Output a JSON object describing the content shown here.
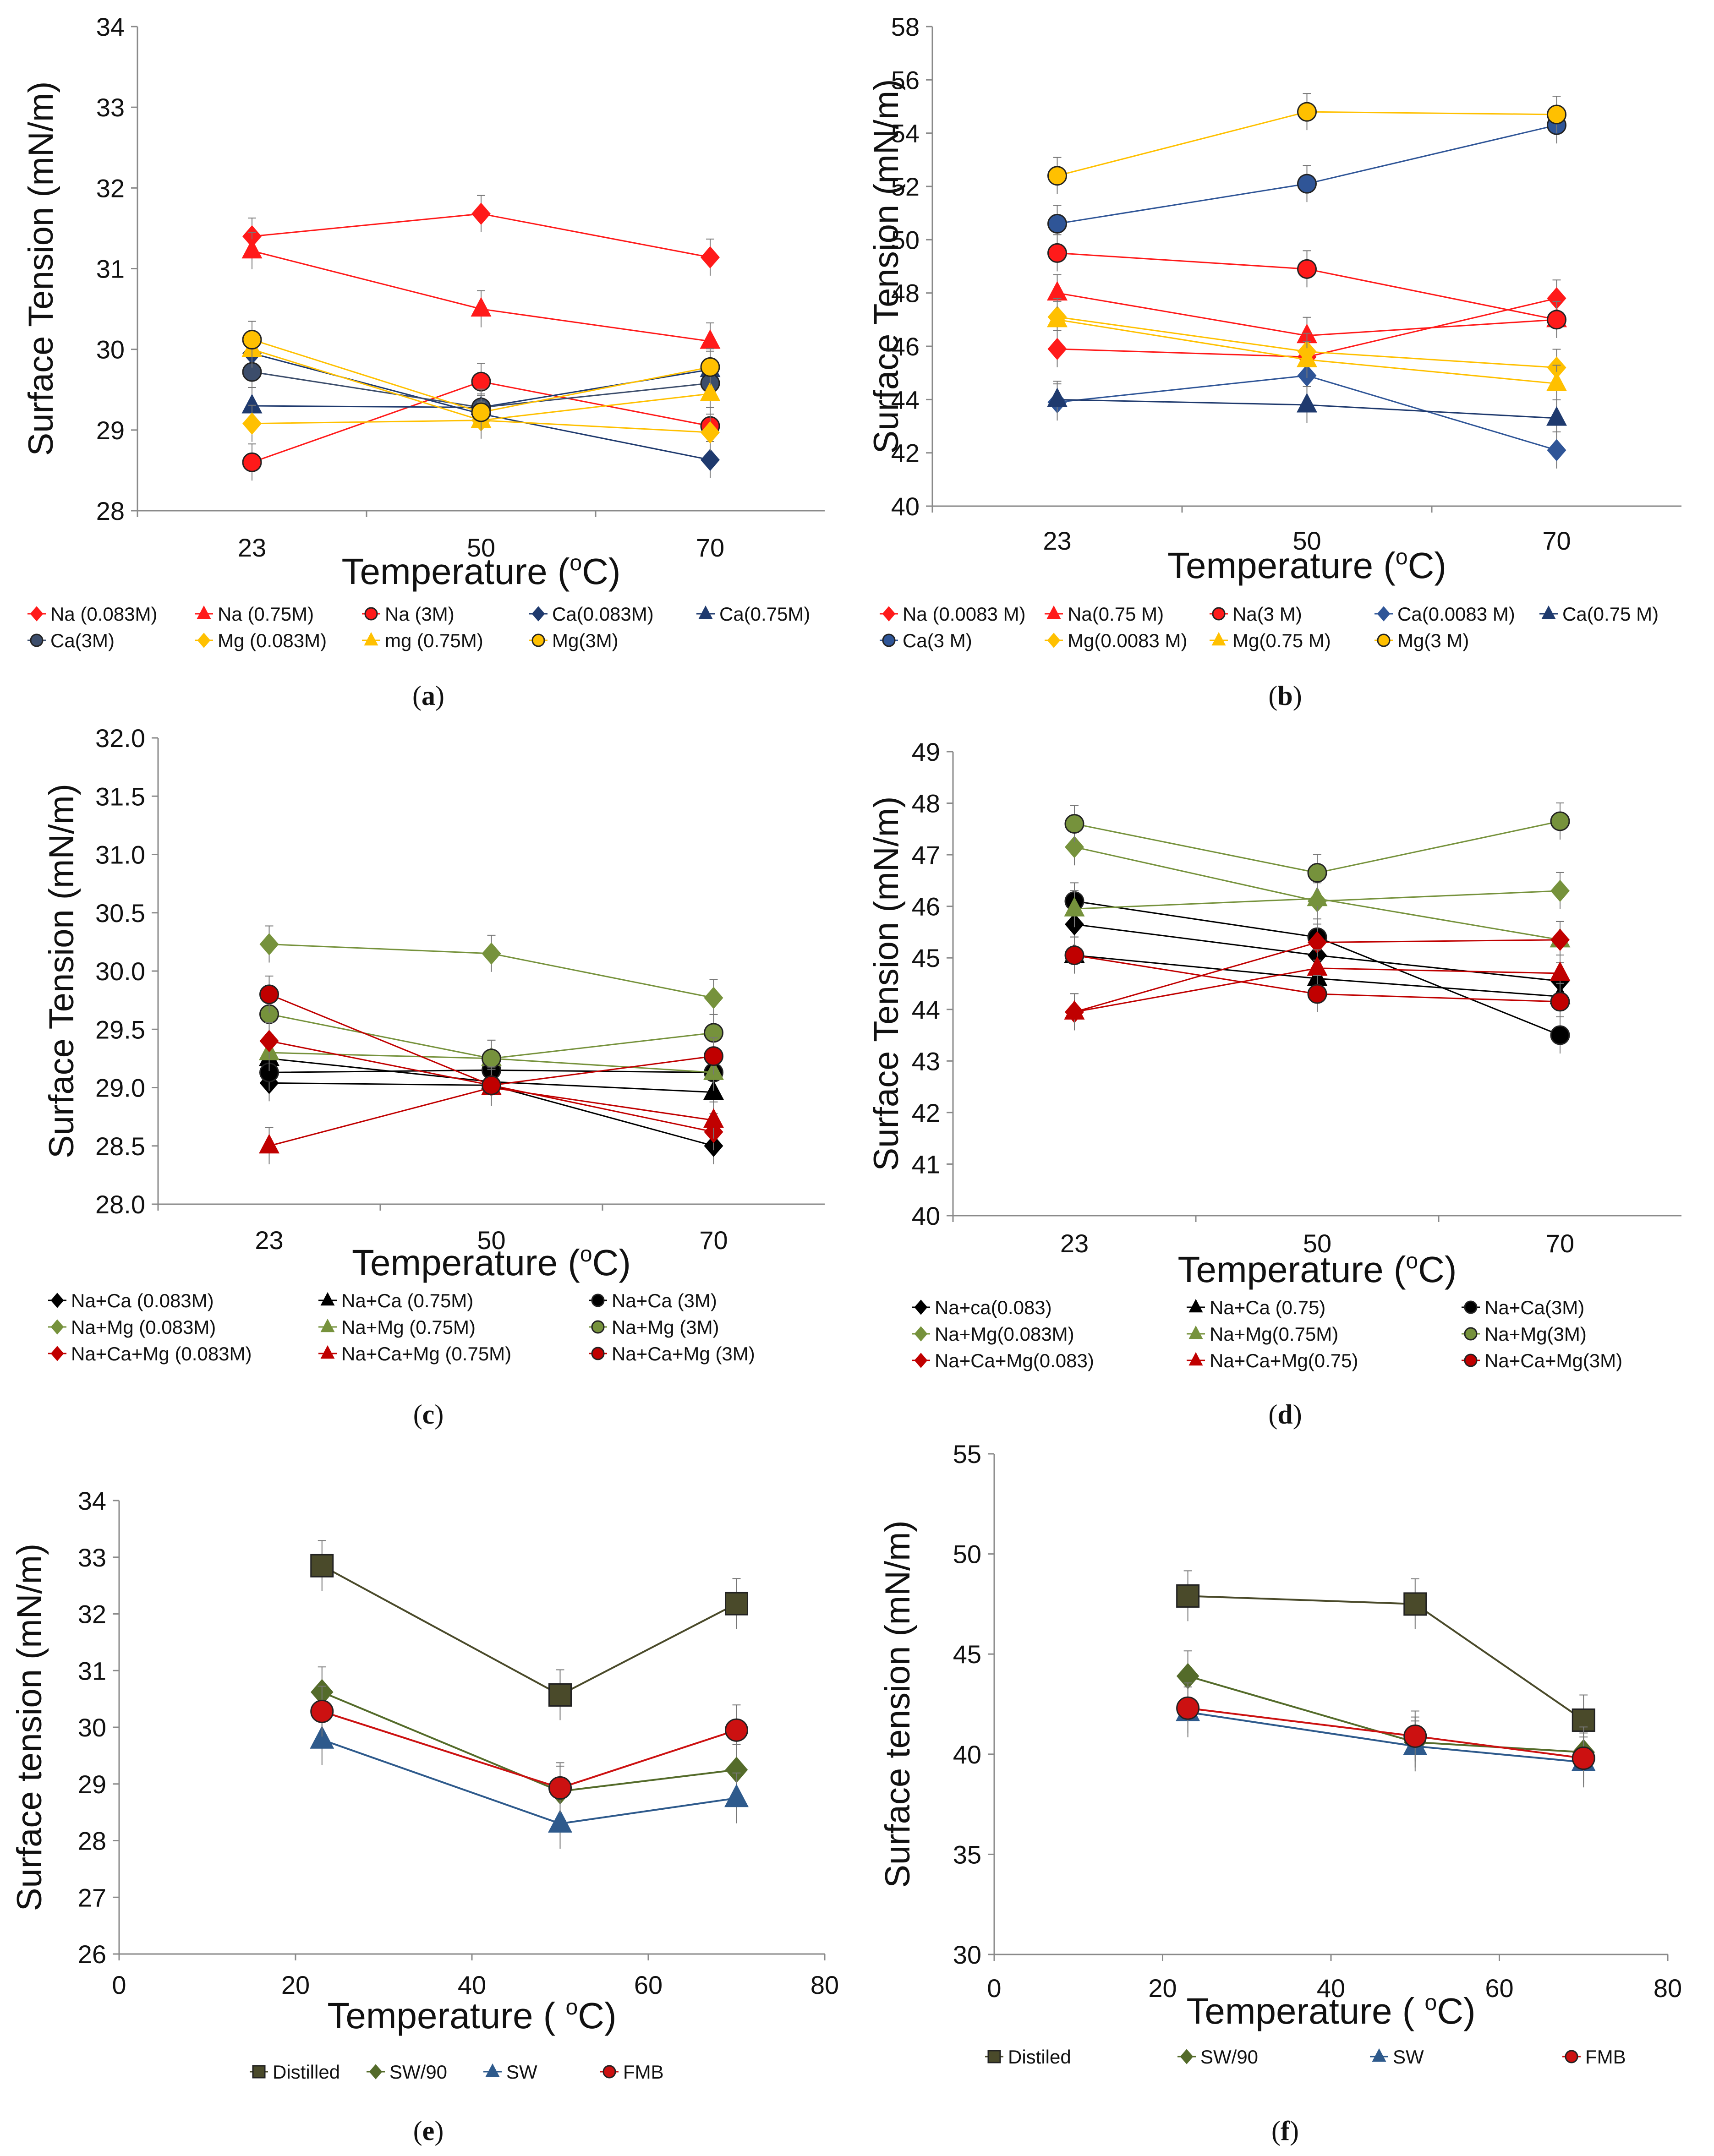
{
  "figure": {
    "panels": [
      {
        "id": "a",
        "caption": "a",
        "chart_data": {
          "type": "line",
          "ylabel": "Surface Tension (mN/m)",
          "xlabel": "Temperature (oC)",
          "xlabel_parts": [
            "Temperature (",
            "o",
            "C)"
          ],
          "x_mode": "category",
          "categories": [
            "23",
            "50",
            "70"
          ],
          "ylim": [
            28,
            34
          ],
          "yticks": [
            28,
            29,
            30,
            31,
            32,
            33,
            34
          ],
          "ytick_labels": [
            "28",
            "29",
            "30",
            "31",
            "32",
            "33",
            "34"
          ],
          "legend_position": "bottom",
          "legend_columns": 5,
          "series": [
            {
              "name": "Na (0.083M)",
              "values": [
                31.4,
                31.68,
                31.14
              ],
              "color": "#ff1a1a",
              "marker": "diamond",
              "size": "small"
            },
            {
              "name": "Na (0.75M)",
              "values": [
                31.22,
                30.5,
                30.1
              ],
              "color": "#ff1a1a",
              "marker": "triangle",
              "size": "small"
            },
            {
              "name": "Na (3M)",
              "values": [
                28.6,
                29.6,
                29.05
              ],
              "color": "#ff1a1a",
              "marker": "circle",
              "size": "small"
            },
            {
              "name": "Ca(0.083M)",
              "values": [
                29.95,
                29.2,
                28.63
              ],
              "color": "#1f3a6e",
              "marker": "diamond",
              "size": "small"
            },
            {
              "name": "Ca(0.75M)",
              "values": [
                29.3,
                29.28,
                29.75
              ],
              "color": "#1f3a6e",
              "marker": "triangle",
              "size": "small"
            },
            {
              "name": "Ca(3M)",
              "values": [
                29.72,
                29.28,
                29.58
              ],
              "color": "#3c4d6b",
              "marker": "circle",
              "size": "small"
            },
            {
              "name": "Mg (0.083M)",
              "values": [
                29.08,
                29.12,
                28.97
              ],
              "color": "#ffc000",
              "marker": "diamond",
              "size": "small"
            },
            {
              "name": "mg (0.75M)",
              "values": [
                30.0,
                29.12,
                29.45
              ],
              "color": "#ffc000",
              "marker": "triangle",
              "size": "small"
            },
            {
              "name": "Mg(3M)",
              "values": [
                30.12,
                29.22,
                29.78
              ],
              "color": "#ffc000",
              "marker": "circle",
              "size": "small"
            }
          ]
        }
      },
      {
        "id": "b",
        "caption": "b",
        "chart_data": {
          "type": "line",
          "ylabel": "Surface Tension (mN/m)",
          "xlabel": "Temperature (oC)",
          "xlabel_parts": [
            "Temperature (",
            "o",
            "C)"
          ],
          "x_mode": "category",
          "categories": [
            "23",
            "50",
            "70"
          ],
          "ylim": [
            40,
            58
          ],
          "yticks": [
            40,
            42,
            44,
            46,
            48,
            50,
            52,
            54,
            56,
            58
          ],
          "ytick_labels": [
            "40",
            "42",
            "44",
            "46",
            "48",
            "50",
            "52",
            "54",
            "56",
            "58"
          ],
          "legend_position": "bottom",
          "legend_columns": 5,
          "series": [
            {
              "name": "Na (0.0083 M)",
              "values": [
                45.9,
                45.6,
                47.8
              ],
              "color": "#ff1a1a",
              "marker": "diamond",
              "size": "small"
            },
            {
              "name": "Na(0.75 M)",
              "values": [
                48.0,
                46.4,
                47.0
              ],
              "color": "#ff1a1a",
              "marker": "triangle",
              "size": "small"
            },
            {
              "name": "Na(3 M)",
              "values": [
                49.5,
                48.9,
                47.0
              ],
              "color": "#ff1a1a",
              "marker": "circle",
              "size": "small"
            },
            {
              "name": "Ca(0.0083 M)",
              "values": [
                43.9,
                44.9,
                42.1
              ],
              "color": "#2f5597",
              "marker": "diamond",
              "size": "small"
            },
            {
              "name": "Ca(0.75 M)",
              "values": [
                44.0,
                43.8,
                43.3
              ],
              "color": "#1f3a6e",
              "marker": "triangle",
              "size": "small"
            },
            {
              "name": "Ca(3 M)",
              "values": [
                50.6,
                52.1,
                54.3
              ],
              "color": "#2f5597",
              "marker": "circle",
              "size": "small"
            },
            {
              "name": "Mg(0.0083 M)",
              "values": [
                47.1,
                45.8,
                45.2
              ],
              "color": "#ffc000",
              "marker": "diamond",
              "size": "small"
            },
            {
              "name": "Mg(0.75 M)",
              "values": [
                47.0,
                45.5,
                44.6
              ],
              "color": "#ffc000",
              "marker": "triangle",
              "size": "small"
            },
            {
              "name": "Mg(3 M)",
              "values": [
                52.4,
                54.8,
                54.7
              ],
              "color": "#ffc000",
              "marker": "circle",
              "size": "small"
            }
          ]
        }
      },
      {
        "id": "c",
        "caption": "c",
        "chart_data": {
          "type": "line",
          "ylabel": "Surface Tension (mN/m)",
          "xlabel": "Temperature (oC)",
          "xlabel_parts": [
            "Temperature (",
            "o",
            "C)"
          ],
          "x_mode": "category",
          "categories": [
            "23",
            "50",
            "70"
          ],
          "ylim": [
            28.0,
            32.0
          ],
          "yticks": [
            28.0,
            28.5,
            29.0,
            29.5,
            30.0,
            30.5,
            31.0,
            31.5,
            32.0
          ],
          "ytick_labels": [
            "28.0",
            "28.5",
            "29.0",
            "29.5",
            "30.0",
            "30.5",
            "31.0",
            "31.5",
            "32.0"
          ],
          "legend_position": "bottom",
          "legend_columns": 3,
          "series": [
            {
              "name": "Na+Ca (0.083M)",
              "values": [
                29.04,
                29.02,
                28.5
              ],
              "color": "#000000",
              "marker": "diamond",
              "size": "small"
            },
            {
              "name": "Na+Ca (0.75M)",
              "values": [
                29.25,
                29.05,
                28.96
              ],
              "color": "#000000",
              "marker": "triangle",
              "size": "small"
            },
            {
              "name": "Na+Ca (3M)",
              "values": [
                29.13,
                29.15,
                29.13
              ],
              "color": "#000000",
              "marker": "circle",
              "size": "small"
            },
            {
              "name": "Na+Mg (0.083M)",
              "values": [
                30.23,
                30.15,
                29.77
              ],
              "color": "#76923c",
              "marker": "diamond",
              "size": "small"
            },
            {
              "name": "Na+Mg (0.75M)",
              "values": [
                29.3,
                29.25,
                29.13
              ],
              "color": "#76923c",
              "marker": "triangle",
              "size": "small"
            },
            {
              "name": "Na+Mg (3M)",
              "values": [
                29.63,
                29.25,
                29.47
              ],
              "color": "#76923c",
              "marker": "circle",
              "size": "small"
            },
            {
              "name": "Na+Ca+Mg (0.083M)",
              "values": [
                29.4,
                29.02,
                28.62
              ],
              "color": "#c00000",
              "marker": "diamond",
              "size": "small"
            },
            {
              "name": "Na+Ca+Mg (0.75M)",
              "values": [
                28.5,
                29.0,
                28.72
              ],
              "color": "#c00000",
              "marker": "triangle",
              "size": "small"
            },
            {
              "name": "Na+Ca+Mg (3M)",
              "values": [
                29.8,
                29.02,
                29.27
              ],
              "color": "#c00000",
              "marker": "circle",
              "size": "small"
            }
          ]
        }
      },
      {
        "id": "d",
        "caption": "d",
        "chart_data": {
          "type": "line",
          "ylabel": "Surface Tension (mN/m)",
          "xlabel": "Temperature (oC)",
          "xlabel_parts": [
            "Temperature (",
            "o",
            "C)"
          ],
          "x_mode": "category",
          "categories": [
            "23",
            "50",
            "70"
          ],
          "ylim": [
            40,
            49
          ],
          "yticks": [
            40,
            41,
            42,
            43,
            44,
            45,
            46,
            47,
            48,
            49
          ],
          "ytick_labels": [
            "40",
            "41",
            "42",
            "43",
            "44",
            "45",
            "46",
            "47",
            "48",
            "49"
          ],
          "legend_position": "bottom",
          "legend_columns": 3,
          "series": [
            {
              "name": "Na+ca(0.083)",
              "values": [
                45.65,
                45.05,
                44.55
              ],
              "color": "#000000",
              "marker": "diamond",
              "size": "small"
            },
            {
              "name": "Na+Ca (0.75)",
              "values": [
                45.05,
                44.6,
                44.25
              ],
              "color": "#000000",
              "marker": "triangle",
              "size": "small"
            },
            {
              "name": "Na+Ca(3M)",
              "values": [
                46.1,
                45.4,
                43.5
              ],
              "color": "#000000",
              "marker": "circle",
              "size": "small"
            },
            {
              "name": "Na+Mg(0.083M)",
              "values": [
                47.15,
                46.1,
                46.3
              ],
              "color": "#76923c",
              "marker": "diamond",
              "size": "small"
            },
            {
              "name": "Na+Mg(0.75M)",
              "values": [
                45.95,
                46.15,
                45.35
              ],
              "color": "#76923c",
              "marker": "triangle",
              "size": "small"
            },
            {
              "name": "Na+Mg(3M)",
              "values": [
                47.6,
                46.65,
                47.65
              ],
              "color": "#76923c",
              "marker": "circle",
              "size": "small"
            },
            {
              "name": "Na+Ca+Mg(0.083)",
              "values": [
                43.95,
                45.3,
                45.35
              ],
              "color": "#c00000",
              "marker": "diamond",
              "size": "small"
            },
            {
              "name": "Na+Ca+Mg(0.75)",
              "values": [
                43.95,
                44.8,
                44.7
              ],
              "color": "#c00000",
              "marker": "triangle",
              "size": "small"
            },
            {
              "name": "Na+Ca+Mg(3M)",
              "values": [
                45.05,
                44.3,
                44.15
              ],
              "color": "#c00000",
              "marker": "circle",
              "size": "small"
            }
          ]
        }
      },
      {
        "id": "e",
        "caption": "e",
        "chart_data": {
          "type": "line",
          "ylabel": "Surface tension (mN/m)",
          "xlabel": "Temperature ( oC)",
          "xlabel_parts": [
            "Temperature ( ",
            "o",
            "C)"
          ],
          "x_mode": "numeric",
          "xlim": [
            0,
            80
          ],
          "xticks": [
            0,
            20,
            40,
            60,
            80
          ],
          "xtick_labels": [
            "0",
            "20",
            "40",
            "60",
            "80"
          ],
          "ylim": [
            26,
            34
          ],
          "yticks": [
            26,
            27,
            28,
            29,
            30,
            31,
            32,
            33,
            34
          ],
          "ytick_labels": [
            "26",
            "27",
            "28",
            "29",
            "30",
            "31",
            "32",
            "33",
            "34"
          ],
          "legend_position": "bottom",
          "legend_columns": 4,
          "series": [
            {
              "name": "Distilled",
              "x": [
                23,
                50,
                70
              ],
              "values": [
                32.85,
                30.57,
                32.18
              ],
              "color": "#4a4a2a",
              "marker": "square",
              "size": "large"
            },
            {
              "name": "SW/90",
              "x": [
                23,
                50,
                70
              ],
              "values": [
                30.62,
                28.87,
                29.25
              ],
              "color": "#546b2a",
              "marker": "diamond",
              "size": "large"
            },
            {
              "name": "SW",
              "x": [
                23,
                50,
                70
              ],
              "values": [
                29.78,
                28.3,
                28.75
              ],
              "color": "#2e5a8c",
              "marker": "triangle",
              "size": "large"
            },
            {
              "name": "FMB",
              "x": [
                23,
                50,
                70
              ],
              "values": [
                30.28,
                28.93,
                29.95
              ],
              "color": "#cc1111",
              "marker": "circle",
              "size": "large"
            }
          ]
        }
      },
      {
        "id": "f",
        "caption": "f",
        "chart_data": {
          "type": "line",
          "ylabel": "Surface tension (mN/m)",
          "xlabel": "Temperature ( oC)",
          "xlabel_parts": [
            "Temperature ( ",
            "o",
            "C)"
          ],
          "x_mode": "numeric",
          "xlim": [
            0,
            80
          ],
          "xticks": [
            0,
            20,
            40,
            60,
            80
          ],
          "xtick_labels": [
            "0",
            "20",
            "40",
            "60",
            "80"
          ],
          "ylim": [
            30,
            55
          ],
          "yticks": [
            30,
            35,
            40,
            45,
            50,
            55
          ],
          "ytick_labels": [
            "30",
            "35",
            "40",
            "45",
            "50",
            "55"
          ],
          "legend_position": "bottom",
          "legend_columns": 4,
          "series": [
            {
              "name": "Distiled",
              "x": [
                23,
                50,
                70
              ],
              "values": [
                47.9,
                47.5,
                41.7
              ],
              "color": "#4a4a2a",
              "marker": "square",
              "size": "large"
            },
            {
              "name": "SW/90",
              "x": [
                23,
                50,
                70
              ],
              "values": [
                43.9,
                40.6,
                40.1
              ],
              "color": "#546b2a",
              "marker": "diamond",
              "size": "large"
            },
            {
              "name": "SW",
              "x": [
                23,
                50,
                70
              ],
              "values": [
                42.1,
                40.4,
                39.6
              ],
              "color": "#2e5a8c",
              "marker": "triangle",
              "size": "large"
            },
            {
              "name": "FMB",
              "x": [
                23,
                50,
                70
              ],
              "values": [
                42.3,
                40.9,
                39.8
              ],
              "color": "#cc1111",
              "marker": "circle",
              "size": "large"
            }
          ]
        }
      }
    ]
  }
}
